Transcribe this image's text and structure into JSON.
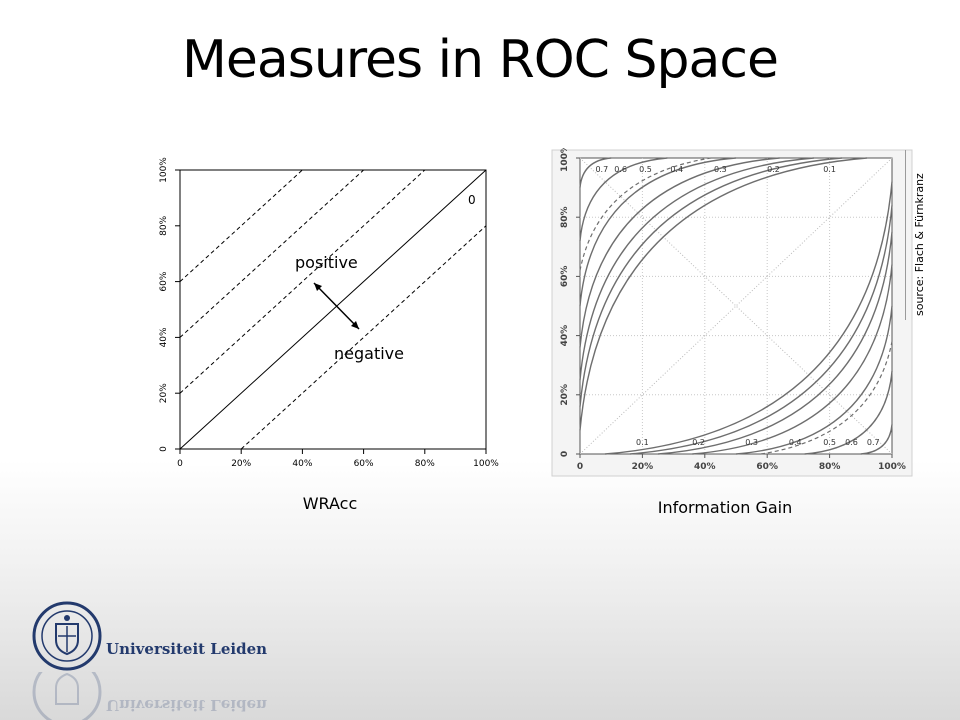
{
  "slide": {
    "title": "Measures in ROC Space",
    "source": "source: Flach & Fürnkranz"
  },
  "wracc": {
    "caption": "WRAcc",
    "positive_label": "positive",
    "negative_label": "negative",
    "contour_label": "0",
    "x_ticks": [
      "0",
      "20%",
      "40%",
      "60%",
      "80%",
      "100%"
    ],
    "y_ticks": [
      "0",
      "20%",
      "40%",
      "60%",
      "80%",
      "100%"
    ]
  },
  "infogain": {
    "caption": "Information Gain",
    "x_ticks": [
      "0",
      "20%",
      "40%",
      "60%",
      "80%",
      "100%"
    ],
    "y_ticks": [
      "0",
      "20%",
      "40%",
      "60%",
      "80%",
      "100%"
    ],
    "upper_labels": [
      "0.7",
      "0.6",
      "0.5",
      "0.4",
      "0.3",
      "0.2",
      "0.1"
    ],
    "lower_labels": [
      "0.1",
      "0.2",
      "0.3",
      "0.4",
      "0.5",
      "0.6",
      "0.7"
    ]
  },
  "logo": {
    "name": "Universiteit Leiden",
    "icon": "leiden-seal-icon"
  },
  "colors": {
    "logo_blue": "#233a6d",
    "contour_gray": "#6e6e6e"
  }
}
